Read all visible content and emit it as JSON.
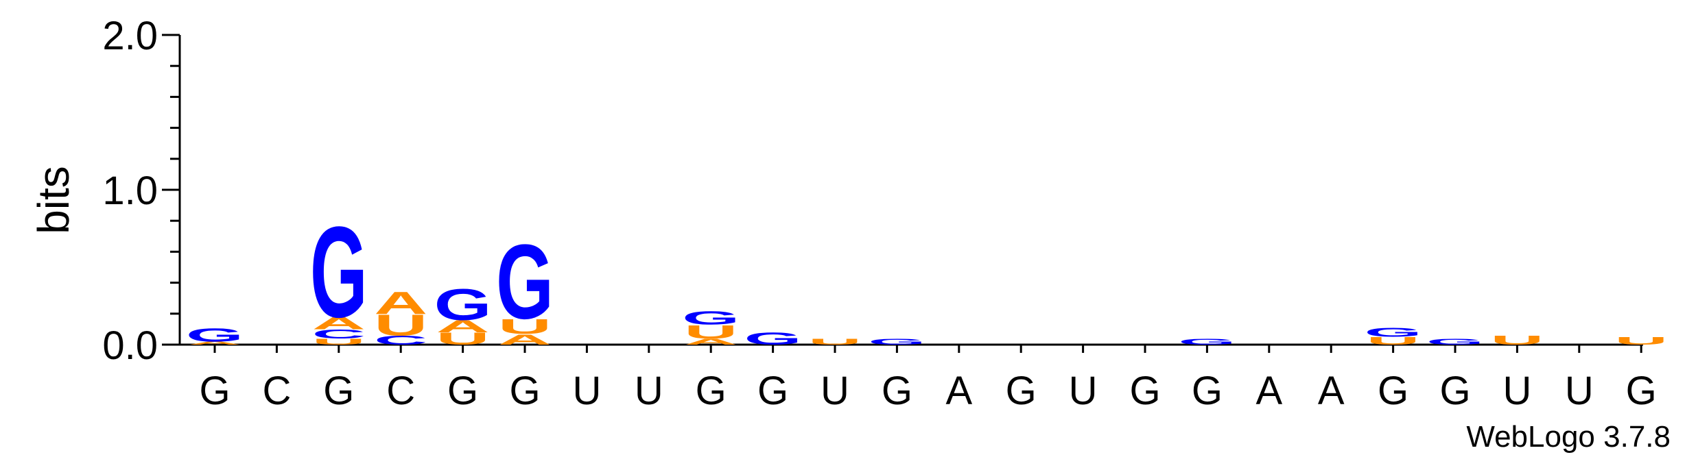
{
  "chart_data": {
    "type": "sequence-logo",
    "ylabel": "bits",
    "ylim": [
      0,
      2
    ],
    "yticks": [
      "0.0",
      "1.0",
      "2.0"
    ],
    "x_tick_labels": [
      "G",
      "C",
      "G",
      "C",
      "G",
      "G",
      "U",
      "U",
      "G",
      "G",
      "U",
      "G",
      "A",
      "G",
      "U",
      "G",
      "G",
      "A",
      "A",
      "G",
      "G",
      "U",
      "U",
      "G"
    ],
    "colors": {
      "G": "#0000ff",
      "C": "#0000ff",
      "A": "#ff8c00",
      "U": "#ff8c00"
    },
    "stacks": [
      [
        {
          "letter": "A",
          "bits": 0.02
        },
        {
          "letter": "G",
          "bits": 0.09
        }
      ],
      [],
      [
        {
          "letter": "U",
          "bits": 0.04
        },
        {
          "letter": "C",
          "bits": 0.06
        },
        {
          "letter": "A",
          "bits": 0.08
        },
        {
          "letter": "G",
          "bits": 0.61
        }
      ],
      [
        {
          "letter": "C",
          "bits": 0.06
        },
        {
          "letter": "U",
          "bits": 0.14
        },
        {
          "letter": "A",
          "bits": 0.15
        }
      ],
      [
        {
          "letter": "U",
          "bits": 0.08
        },
        {
          "letter": "A",
          "bits": 0.08
        },
        {
          "letter": "G",
          "bits": 0.21
        }
      ],
      [
        {
          "letter": "A",
          "bits": 0.07
        },
        {
          "letter": "U",
          "bits": 0.1
        },
        {
          "letter": "G",
          "bits": 0.5
        }
      ],
      [],
      [],
      [
        {
          "letter": "A",
          "bits": 0.04
        },
        {
          "letter": "U",
          "bits": 0.09
        },
        {
          "letter": "G",
          "bits": 0.09
        }
      ],
      [
        {
          "letter": "G",
          "bits": 0.08
        }
      ],
      [
        {
          "letter": "U",
          "bits": 0.04
        }
      ],
      [
        {
          "letter": "G",
          "bits": 0.04
        }
      ],
      [],
      [],
      [],
      [],
      [
        {
          "letter": "G",
          "bits": 0.04
        }
      ],
      [],
      [],
      [
        {
          "letter": "U",
          "bits": 0.05
        },
        {
          "letter": "G",
          "bits": 0.06
        }
      ],
      [
        {
          "letter": "G",
          "bits": 0.04
        }
      ],
      [
        {
          "letter": "U",
          "bits": 0.06
        }
      ],
      [],
      [
        {
          "letter": "U",
          "bits": 0.05
        }
      ]
    ]
  },
  "credit": "WebLogo 3.7.8"
}
